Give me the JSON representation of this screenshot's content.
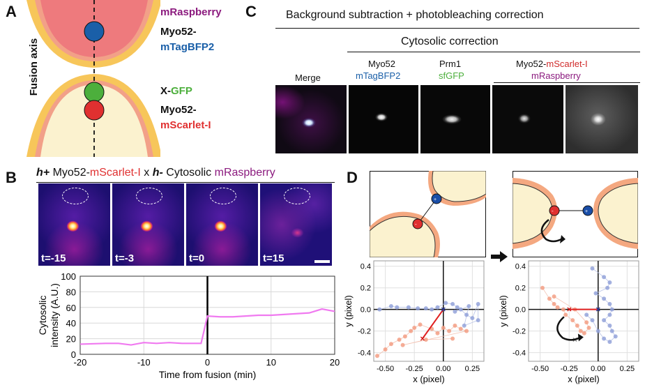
{
  "panels": {
    "a": "A",
    "b": "B",
    "c": "C",
    "d": "D"
  },
  "panel_a": {
    "axis_label": "Fusion axis",
    "top_label_1": "mRaspberry",
    "top_label_2a": "Myo52-",
    "top_label_2b": "mTagBFP2",
    "bottom_label_1a": "X-",
    "bottom_label_1b": "GFP",
    "bottom_label_2a": "Myo52-",
    "bottom_label_2b": "mScarlet-I",
    "colors": {
      "raspberry": "#8b1a7e",
      "blue": "#1a5fa8",
      "green": "#4caf3c",
      "red": "#e03030"
    }
  },
  "panel_c": {
    "header": "Background subtraction + photobleaching correction",
    "subheader": "Cytosolic correction",
    "col_merge": "Merge",
    "col2_a": "Myo52",
    "col2_b": "mTagBFP2",
    "col3_a": "Prm1",
    "col3_b": "sfGFP",
    "col4_a": "Myo52-",
    "col4_b": "mScarlet-I",
    "col4_c": "mRaspberry"
  },
  "panel_b": {
    "title_h1": "h+",
    "title_part1": " Myo52-",
    "title_part2": "mScarlet-I",
    "title_x": " x ",
    "title_h2": "h-",
    "title_part3": " Cytosolic ",
    "title_part4": "mRaspberry",
    "frames": [
      "t=-15",
      "t=-3",
      "t=0",
      "t=15"
    ],
    "frame_intensity": [
      0.9,
      0.95,
      1.0,
      0.25
    ]
  },
  "chart_data": [
    {
      "type": "line",
      "title": "",
      "xlabel": "Time from fusion (min)",
      "ylabel": "Cytosolic intensity (A.U.)",
      "xlim": [
        -20,
        20
      ],
      "ylim": [
        0,
        100
      ],
      "xticks": [
        -20,
        -10,
        0,
        10,
        20
      ],
      "yticks": [
        0,
        20,
        40,
        60,
        80,
        100
      ],
      "ytick_labels": [
        "0",
        "20",
        "40",
        "60",
        "80",
        "100"
      ],
      "x": [
        -20,
        -16,
        -14,
        -12,
        -10,
        -8,
        -6,
        -4,
        -2,
        -1,
        0,
        2,
        4,
        6,
        8,
        10,
        12,
        14,
        16,
        18,
        20
      ],
      "y": [
        13,
        14,
        14,
        12,
        15,
        14,
        15,
        14,
        14,
        14,
        49,
        48,
        48,
        49,
        50,
        50,
        51,
        52,
        53,
        58,
        55
      ],
      "line_color": "#f07af0",
      "vline_x": 0
    },
    {
      "type": "scatter",
      "xlabel": "x (pixel)",
      "ylabel": "y (pixel)",
      "xlim": [
        -0.6,
        0.35
      ],
      "ylim": [
        -0.48,
        0.45
      ],
      "xticks": [
        -0.5,
        -0.25,
        0.0,
        0.25
      ],
      "xtick_labels": [
        "-0.50",
        "-0.25",
        "0.00",
        "0.25"
      ],
      "yticks": [
        0.4,
        0.2,
        0.0,
        -0.2,
        -0.4
      ],
      "ytick_labels": [
        "0.4",
        "0.2",
        "0.0",
        "-0.2",
        "-0.4"
      ],
      "blue_points": [
        [
          -0.55,
          0.0
        ],
        [
          -0.45,
          0.03
        ],
        [
          -0.4,
          0.02
        ],
        [
          -0.3,
          0.02
        ],
        [
          -0.22,
          0.01
        ],
        [
          -0.15,
          0.01
        ],
        [
          -0.1,
          0.0
        ],
        [
          -0.05,
          0.02
        ],
        [
          0.02,
          0.06
        ],
        [
          0.08,
          0.05
        ],
        [
          0.12,
          0.02
        ],
        [
          0.15,
          0.0
        ],
        [
          0.2,
          -0.05
        ],
        [
          0.25,
          -0.08
        ],
        [
          0.3,
          0.05
        ],
        [
          0.3,
          -0.1
        ],
        [
          0.18,
          -0.15
        ],
        [
          0.22,
          0.03
        ],
        [
          0.1,
          -0.02
        ]
      ],
      "red_points": [
        [
          -0.57,
          -0.43
        ],
        [
          -0.5,
          -0.37
        ],
        [
          -0.45,
          -0.32
        ],
        [
          -0.38,
          -0.28
        ],
        [
          -0.33,
          -0.25
        ],
        [
          -0.28,
          -0.2
        ],
        [
          -0.25,
          -0.17
        ],
        [
          -0.2,
          -0.14
        ],
        [
          -0.1,
          -0.18
        ],
        [
          -0.05,
          -0.22
        ],
        [
          0.0,
          -0.17
        ],
        [
          0.05,
          -0.2
        ],
        [
          0.1,
          -0.15
        ],
        [
          0.15,
          -0.18
        ],
        [
          0.2,
          -0.2
        ],
        [
          -0.35,
          -0.33
        ],
        [
          -0.15,
          -0.28
        ],
        [
          0.08,
          -0.27
        ]
      ],
      "red_marker": [
        -0.18,
        -0.27
      ],
      "blue_marker": [
        0.0,
        0.0
      ]
    },
    {
      "type": "scatter",
      "xlabel": "x (pixel)",
      "ylabel": "y (pixel)",
      "xlim": [
        -0.6,
        0.35
      ],
      "ylim": [
        -0.48,
        0.45
      ],
      "xticks": [
        -0.5,
        -0.25,
        0.0,
        0.25
      ],
      "xtick_labels": [
        "-0.50",
        "-0.25",
        "0.00",
        "0.25"
      ],
      "yticks": [
        0.4,
        0.2,
        0.0,
        -0.2,
        -0.4
      ],
      "ytick_labels": [
        "0.4",
        "0.2",
        "0.0",
        "-0.2",
        "-0.4"
      ],
      "blue_points": [
        [
          -0.05,
          0.38
        ],
        [
          0.05,
          0.3
        ],
        [
          0.1,
          0.25
        ],
        [
          0.08,
          0.2
        ],
        [
          -0.02,
          0.15
        ],
        [
          0.05,
          0.1
        ],
        [
          0.1,
          0.05
        ],
        [
          0.12,
          0.0
        ],
        [
          0.1,
          -0.05
        ],
        [
          0.05,
          -0.1
        ],
        [
          0.1,
          -0.15
        ],
        [
          0.12,
          -0.2
        ],
        [
          0.15,
          -0.25
        ],
        [
          0.1,
          -0.3
        ],
        [
          0.05,
          -0.27
        ],
        [
          0.0,
          -0.2
        ],
        [
          -0.05,
          -0.1
        ],
        [
          -0.1,
          -0.05
        ]
      ],
      "red_points": [
        [
          -0.48,
          0.2
        ],
        [
          -0.42,
          0.1
        ],
        [
          -0.38,
          0.05
        ],
        [
          -0.35,
          0.02
        ],
        [
          -0.3,
          0.0
        ],
        [
          -0.28,
          -0.05
        ],
        [
          -0.22,
          -0.1
        ],
        [
          -0.18,
          -0.15
        ],
        [
          -0.15,
          -0.2
        ],
        [
          -0.12,
          -0.22
        ],
        [
          -0.08,
          -0.17
        ],
        [
          -0.1,
          -0.12
        ],
        [
          -0.2,
          0.0
        ],
        [
          -0.38,
          0.12
        ]
      ],
      "red_marker": [
        -0.25,
        0.0
      ],
      "blue_marker": [
        0.0,
        0.0
      ],
      "grey_marker": [
        -0.2,
        -0.28
      ]
    }
  ]
}
